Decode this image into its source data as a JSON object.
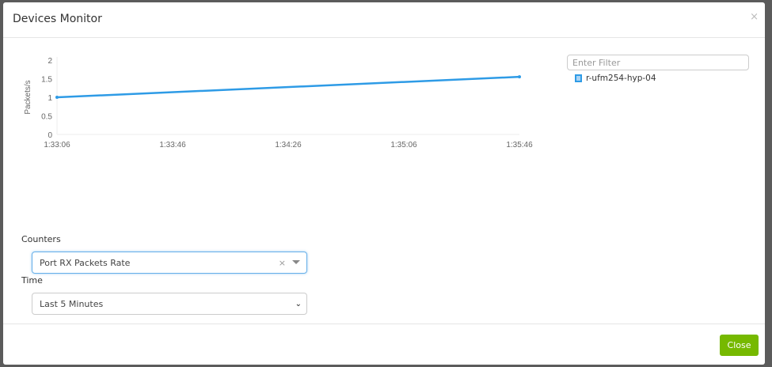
{
  "modal": {
    "title": "Devices Monitor",
    "close_x": "×"
  },
  "chart_data": {
    "type": "line",
    "ylabel": "Packets/s",
    "ylim": [
      0,
      2
    ],
    "yticks": [
      "0",
      "0.5",
      "1",
      "1.5",
      "2"
    ],
    "xticks": [
      "1:33:06",
      "1:33:46",
      "1:34:26",
      "1:35:06",
      "1:35:46"
    ],
    "series": [
      {
        "name": "r-ufm254-hyp-04",
        "color": "#2e9be6",
        "x": [
          "1:33:06",
          "1:35:46"
        ],
        "y": [
          1.0,
          1.55
        ]
      }
    ]
  },
  "filter": {
    "placeholder": "Enter Filter"
  },
  "legend": {
    "items": [
      {
        "label": "r-ufm254-hyp-04"
      }
    ]
  },
  "counters": {
    "label": "Counters",
    "value": "Port RX Packets Rate",
    "clear": "×"
  },
  "time": {
    "label": "Time",
    "value": "Last 5 Minutes",
    "chevron": "⌄"
  },
  "footer": {
    "close_label": "Close"
  }
}
